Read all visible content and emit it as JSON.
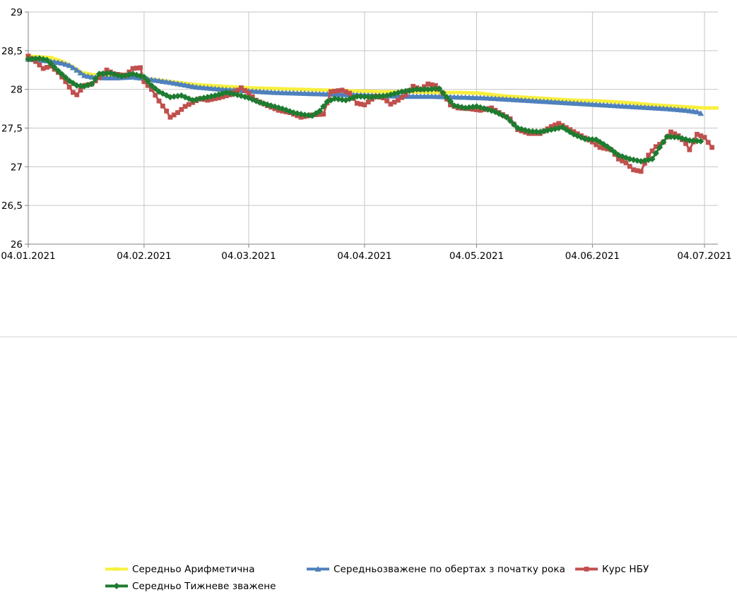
{
  "chart_data": {
    "type": "line",
    "title": "",
    "grid": true,
    "legend_position": "bottom",
    "y_axis": {
      "min": 26,
      "max": 29,
      "step": 0.5,
      "tick_labels": [
        "26",
        "26,5",
        "27",
        "27,5",
        "28",
        "28,5",
        "29"
      ]
    },
    "x_axis": {
      "tick_labels": [
        "04.01.2021",
        "04.02.2021",
        "04.03.2021",
        "04.04.2021",
        "04.05.2021",
        "04.06.2021",
        "04.07.2021"
      ],
      "tick_days": [
        0,
        31,
        59,
        90,
        120,
        151,
        181
      ]
    },
    "series": [
      {
        "name": "Середньо Арифметична",
        "color": "#f8ef3d",
        "marker": "dash",
        "line_width": 4,
        "points": [
          [
            0,
            28.43
          ],
          [
            6,
            28.41
          ],
          [
            9,
            28.36
          ],
          [
            12,
            28.28
          ],
          [
            14,
            28.22
          ],
          [
            17,
            28.19
          ],
          [
            20,
            28.18
          ],
          [
            24,
            28.17
          ],
          [
            28,
            28.17
          ],
          [
            31,
            28.14
          ],
          [
            38,
            28.1
          ],
          [
            45,
            28.06
          ],
          [
            52,
            28.04
          ],
          [
            59,
            28.02
          ],
          [
            66,
            28.01
          ],
          [
            73,
            28.0
          ],
          [
            80,
            27.99
          ],
          [
            87,
            27.98
          ],
          [
            94,
            27.97
          ],
          [
            101,
            27.97
          ],
          [
            108,
            27.96
          ],
          [
            115,
            27.96
          ],
          [
            121,
            27.95
          ],
          [
            126,
            27.92
          ],
          [
            132,
            27.9
          ],
          [
            139,
            27.88
          ],
          [
            146,
            27.86
          ],
          [
            153,
            27.85
          ],
          [
            160,
            27.83
          ],
          [
            167,
            27.8
          ],
          [
            174,
            27.78
          ],
          [
            181,
            27.76
          ],
          [
            184,
            27.76
          ]
        ]
      },
      {
        "name": "Середньозважене по обертах з початку рока",
        "color": "#4f81bd",
        "marker": "triangle",
        "line_width": 4,
        "points": [
          [
            0,
            28.39
          ],
          [
            5,
            28.37
          ],
          [
            9,
            28.34
          ],
          [
            11,
            28.31
          ],
          [
            13,
            28.25
          ],
          [
            15,
            28.18
          ],
          [
            17,
            28.16
          ],
          [
            20,
            28.15
          ],
          [
            24,
            28.15
          ],
          [
            28,
            28.16
          ],
          [
            31,
            28.14
          ],
          [
            38,
            28.09
          ],
          [
            45,
            28.03
          ],
          [
            52,
            28.0
          ],
          [
            59,
            27.98
          ],
          [
            66,
            27.96
          ],
          [
            73,
            27.95
          ],
          [
            80,
            27.94
          ],
          [
            87,
            27.93
          ],
          [
            94,
            27.92
          ],
          [
            101,
            27.91
          ],
          [
            108,
            27.91
          ],
          [
            115,
            27.9
          ],
          [
            122,
            27.89
          ],
          [
            129,
            27.87
          ],
          [
            136,
            27.85
          ],
          [
            143,
            27.83
          ],
          [
            150,
            27.81
          ],
          [
            157,
            27.79
          ],
          [
            164,
            27.77
          ],
          [
            171,
            27.75
          ],
          [
            176,
            27.73
          ],
          [
            179,
            27.71
          ],
          [
            180,
            27.69
          ]
        ]
      },
      {
        "name": "Курс НБУ",
        "color": "#c0504d",
        "marker": "square",
        "line_width": 3,
        "points": [
          [
            0,
            28.43
          ],
          [
            2,
            28.36
          ],
          [
            4,
            28.27
          ],
          [
            6,
            28.3
          ],
          [
            8,
            28.22
          ],
          [
            10,
            28.1
          ],
          [
            12,
            27.96
          ],
          [
            13,
            27.93
          ],
          [
            15,
            28.05
          ],
          [
            17,
            28.07
          ],
          [
            19,
            28.15
          ],
          [
            21,
            28.25
          ],
          [
            23,
            28.2
          ],
          [
            26,
            28.18
          ],
          [
            28,
            28.27
          ],
          [
            30,
            28.28
          ],
          [
            31,
            28.1
          ],
          [
            33,
            28.0
          ],
          [
            35,
            27.85
          ],
          [
            37,
            27.72
          ],
          [
            38,
            27.64
          ],
          [
            40,
            27.7
          ],
          [
            42,
            27.78
          ],
          [
            44,
            27.83
          ],
          [
            46,
            27.88
          ],
          [
            48,
            27.86
          ],
          [
            51,
            27.89
          ],
          [
            54,
            27.93
          ],
          [
            57,
            28.02
          ],
          [
            59,
            27.95
          ],
          [
            61,
            27.86
          ],
          [
            64,
            27.79
          ],
          [
            67,
            27.73
          ],
          [
            70,
            27.7
          ],
          [
            73,
            27.64
          ],
          [
            76,
            27.67
          ],
          [
            79,
            27.68
          ],
          [
            81,
            27.97
          ],
          [
            84,
            27.99
          ],
          [
            86,
            27.95
          ],
          [
            88,
            27.82
          ],
          [
            90,
            27.8
          ],
          [
            93,
            27.91
          ],
          [
            95,
            27.89
          ],
          [
            97,
            27.81
          ],
          [
            99,
            27.86
          ],
          [
            101,
            27.93
          ],
          [
            103,
            28.04
          ],
          [
            105,
            28.0
          ],
          [
            107,
            28.07
          ],
          [
            109,
            28.05
          ],
          [
            111,
            27.95
          ],
          [
            113,
            27.8
          ],
          [
            115,
            27.76
          ],
          [
            118,
            27.75
          ],
          [
            121,
            27.73
          ],
          [
            124,
            27.76
          ],
          [
            126,
            27.7
          ],
          [
            129,
            27.62
          ],
          [
            131,
            27.48
          ],
          [
            134,
            27.43
          ],
          [
            137,
            27.43
          ],
          [
            140,
            27.52
          ],
          [
            142,
            27.56
          ],
          [
            145,
            27.48
          ],
          [
            148,
            27.4
          ],
          [
            151,
            27.32
          ],
          [
            153,
            27.25
          ],
          [
            156,
            27.22
          ],
          [
            158,
            27.1
          ],
          [
            160,
            27.05
          ],
          [
            162,
            26.96
          ],
          [
            164,
            26.94
          ],
          [
            166,
            27.15
          ],
          [
            168,
            27.26
          ],
          [
            170,
            27.32
          ],
          [
            172,
            27.45
          ],
          [
            174,
            27.4
          ],
          [
            176,
            27.3
          ],
          [
            177,
            27.22
          ],
          [
            179,
            27.42
          ],
          [
            181,
            27.38
          ],
          [
            183,
            27.25
          ]
        ]
      },
      {
        "name": "Середньо Тижневе зважене",
        "color": "#1e7c30",
        "marker": "diamond",
        "line_width": 3,
        "points": [
          [
            0,
            28.39
          ],
          [
            3,
            28.4
          ],
          [
            5,
            28.38
          ],
          [
            8,
            28.24
          ],
          [
            11,
            28.11
          ],
          [
            13,
            28.05
          ],
          [
            15,
            28.04
          ],
          [
            17,
            28.07
          ],
          [
            19,
            28.2
          ],
          [
            22,
            28.21
          ],
          [
            25,
            28.17
          ],
          [
            28,
            28.2
          ],
          [
            31,
            28.16
          ],
          [
            33,
            28.05
          ],
          [
            35,
            27.97
          ],
          [
            38,
            27.9
          ],
          [
            41,
            27.92
          ],
          [
            44,
            27.86
          ],
          [
            47,
            27.89
          ],
          [
            50,
            27.92
          ],
          [
            53,
            27.96
          ],
          [
            56,
            27.93
          ],
          [
            59,
            27.89
          ],
          [
            62,
            27.83
          ],
          [
            65,
            27.79
          ],
          [
            68,
            27.75
          ],
          [
            71,
            27.7
          ],
          [
            74,
            27.67
          ],
          [
            76,
            27.66
          ],
          [
            78,
            27.72
          ],
          [
            80,
            27.84
          ],
          [
            82,
            27.88
          ],
          [
            85,
            27.86
          ],
          [
            88,
            27.91
          ],
          [
            92,
            27.9
          ],
          [
            96,
            27.92
          ],
          [
            100,
            27.97
          ],
          [
            104,
            28.0
          ],
          [
            107,
            28.0
          ],
          [
            110,
            28.01
          ],
          [
            112,
            27.9
          ],
          [
            114,
            27.79
          ],
          [
            117,
            27.76
          ],
          [
            120,
            27.78
          ],
          [
            123,
            27.74
          ],
          [
            125,
            27.71
          ],
          [
            128,
            27.64
          ],
          [
            131,
            27.5
          ],
          [
            134,
            27.46
          ],
          [
            137,
            27.45
          ],
          [
            140,
            27.48
          ],
          [
            143,
            27.51
          ],
          [
            146,
            27.42
          ],
          [
            149,
            27.36
          ],
          [
            152,
            27.35
          ],
          [
            155,
            27.26
          ],
          [
            158,
            27.15
          ],
          [
            161,
            27.1
          ],
          [
            164,
            27.07
          ],
          [
            167,
            27.1
          ],
          [
            169,
            27.25
          ],
          [
            171,
            27.39
          ],
          [
            174,
            27.38
          ],
          [
            177,
            27.34
          ],
          [
            180,
            27.33
          ]
        ]
      }
    ],
    "colors": {
      "gridline": "#c6c6c6",
      "axis": "#808080",
      "label": "#000000",
      "background": "#ffffff"
    }
  }
}
